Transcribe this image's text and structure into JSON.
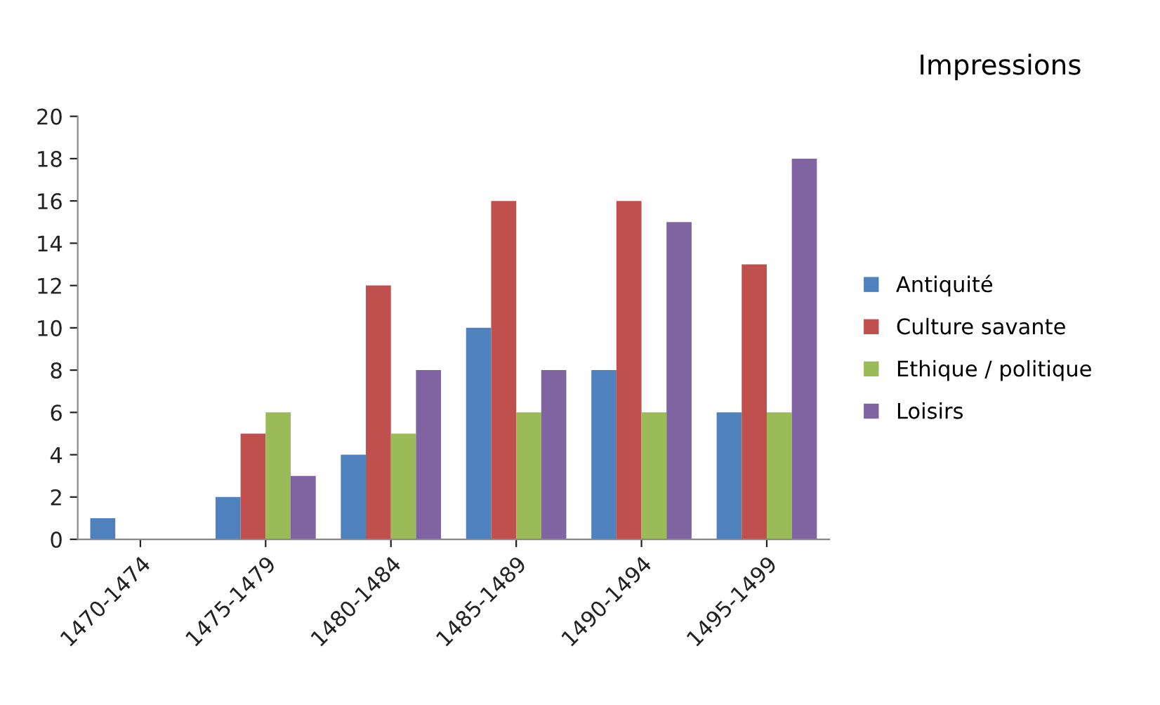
{
  "chart_data": {
    "type": "bar",
    "title": "Impressions",
    "categories": [
      "1470-1474",
      "1475-1479",
      "1480-1484",
      "1485-1489",
      "1490-1494",
      "1495-1499"
    ],
    "series": [
      {
        "name": "Antiquité",
        "color": "#4f81bd",
        "values": [
          1,
          2,
          4,
          10,
          8,
          6
        ]
      },
      {
        "name": "Culture savante",
        "color": "#c0504d",
        "values": [
          0,
          5,
          12,
          16,
          16,
          13
        ]
      },
      {
        "name": "Ethique / politique",
        "color": "#9bbb59",
        "values": [
          0,
          6,
          5,
          6,
          6,
          6
        ]
      },
      {
        "name": "Loisirs",
        "color": "#8064a2",
        "values": [
          0,
          3,
          8,
          8,
          15,
          18
        ]
      }
    ],
    "ylim": [
      0,
      20
    ],
    "yticks": [
      0,
      2,
      4,
      6,
      8,
      10,
      12,
      14,
      16,
      18,
      20
    ],
    "grid": false,
    "legend": "right"
  }
}
